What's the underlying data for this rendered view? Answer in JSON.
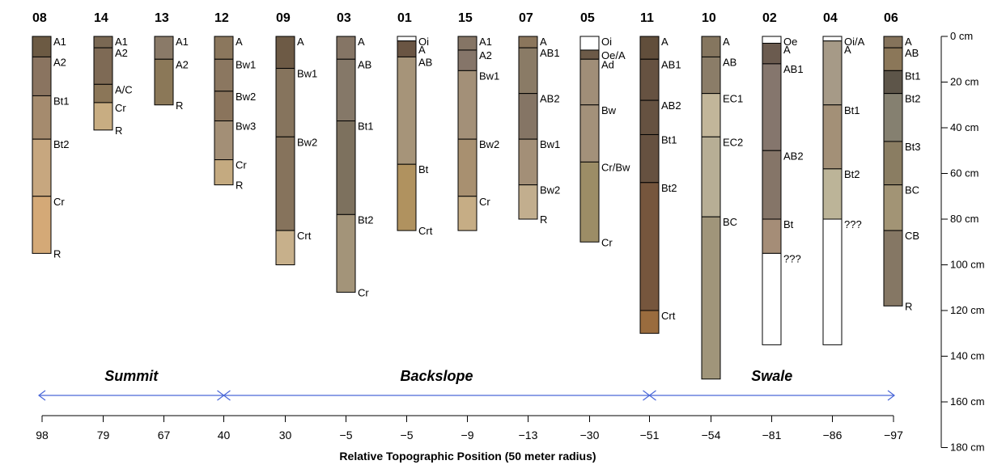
{
  "figure": {
    "x_axis_title": "Relative Topographic Position (50 meter radius)",
    "depth_unit": "cm",
    "depth_ticks": [
      0,
      20,
      40,
      60,
      80,
      100,
      120,
      140,
      160,
      180
    ],
    "regions": [
      {
        "name": "Summit",
        "from_index": 0,
        "to_index": 3
      },
      {
        "name": "Backslope",
        "from_index": 3,
        "to_index": 10
      },
      {
        "name": "Swale",
        "from_index": 10,
        "to_index": 14
      }
    ],
    "profiles": [
      {
        "id": "08",
        "position": "98",
        "horizons": [
          {
            "name": "A1",
            "top": 0,
            "bottom": 9,
            "color": "#6c5a43"
          },
          {
            "name": "A2",
            "top": 9,
            "bottom": 26,
            "color": "#8a7460"
          },
          {
            "name": "Bt1",
            "top": 26,
            "bottom": 45,
            "color": "#a58b6e"
          },
          {
            "name": "Bt2",
            "top": 45,
            "bottom": 70,
            "color": "#c7a77f"
          },
          {
            "name": "Cr",
            "top": 70,
            "bottom": 95,
            "color": "#d4a977"
          }
        ],
        "bottom_label": "R"
      },
      {
        "id": "14",
        "position": "79",
        "horizons": [
          {
            "name": "A1",
            "top": 0,
            "bottom": 5,
            "color": "#7a6853"
          },
          {
            "name": "A2",
            "top": 5,
            "bottom": 21,
            "color": "#7e6a55"
          },
          {
            "name": "A/C",
            "top": 21,
            "bottom": 29,
            "color": "#8b7658"
          },
          {
            "name": "Cr",
            "top": 29,
            "bottom": 41,
            "color": "#c8ad82"
          }
        ],
        "bottom_label": "R"
      },
      {
        "id": "13",
        "position": "67",
        "horizons": [
          {
            "name": "A1",
            "top": 0,
            "bottom": 10,
            "color": "#8a7a68"
          },
          {
            "name": "A2",
            "top": 10,
            "bottom": 30,
            "color": "#8b7858"
          }
        ],
        "bottom_label": "R"
      },
      {
        "id": "12",
        "position": "40",
        "horizons": [
          {
            "name": "A",
            "top": 0,
            "bottom": 10,
            "color": "#8b775d"
          },
          {
            "name": "Bw1",
            "top": 10,
            "bottom": 24,
            "color": "#8b7760"
          },
          {
            "name": "Bw2",
            "top": 24,
            "bottom": 37,
            "color": "#8a745c"
          },
          {
            "name": "Bw3",
            "top": 37,
            "bottom": 54,
            "color": "#a38f76"
          },
          {
            "name": "Cr",
            "top": 54,
            "bottom": 65,
            "color": "#c4aa80"
          }
        ],
        "bottom_label": "R"
      },
      {
        "id": "09",
        "position": "30",
        "horizons": [
          {
            "name": "A",
            "top": 0,
            "bottom": 14,
            "color": "#6d5a45"
          },
          {
            "name": "Bw1",
            "top": 14,
            "bottom": 44,
            "color": "#86745d"
          },
          {
            "name": "Bw2",
            "top": 44,
            "bottom": 85,
            "color": "#86735c"
          },
          {
            "name": "Crt",
            "top": 85,
            "bottom": 100,
            "color": "#c7b08b"
          }
        ],
        "bottom_label": ""
      },
      {
        "id": "03",
        "position": "−5",
        "horizons": [
          {
            "name": "A",
            "top": 0,
            "bottom": 10,
            "color": "#857565"
          },
          {
            "name": "AB",
            "top": 10,
            "bottom": 37,
            "color": "#857868"
          },
          {
            "name": "Bt1",
            "top": 37,
            "bottom": 78,
            "color": "#7d715e"
          },
          {
            "name": "Bt2",
            "top": 78,
            "bottom": 112,
            "color": "#a39479"
          }
        ],
        "bottom_label": "Cr"
      },
      {
        "id": "01",
        "position": "−5",
        "horizons": [
          {
            "name": "Oi",
            "top": 0,
            "bottom": 2,
            "color": "#ffffff"
          },
          {
            "name": "A",
            "top": 2,
            "bottom": 9,
            "color": "#6a5543"
          },
          {
            "name": "AB",
            "top": 9,
            "bottom": 56,
            "color": "#a69479"
          },
          {
            "name": "Bt",
            "top": 56,
            "bottom": 85,
            "color": "#b0925f"
          }
        ],
        "bottom_label": "Crt"
      },
      {
        "id": "15",
        "position": "−9",
        "horizons": [
          {
            "name": "A1",
            "top": 0,
            "bottom": 6,
            "color": "#857565"
          },
          {
            "name": "A2",
            "top": 6,
            "bottom": 15,
            "color": "#857569"
          },
          {
            "name": "Bw1",
            "top": 15,
            "bottom": 45,
            "color": "#a39078"
          },
          {
            "name": "Bw2",
            "top": 45,
            "bottom": 70,
            "color": "#a89070"
          },
          {
            "name": "Cr",
            "top": 70,
            "bottom": 85,
            "color": "#c6ad85"
          }
        ],
        "bottom_label": ""
      },
      {
        "id": "07",
        "position": "−13",
        "horizons": [
          {
            "name": "A",
            "top": 0,
            "bottom": 5,
            "color": "#8b765c"
          },
          {
            "name": "AB1",
            "top": 5,
            "bottom": 25,
            "color": "#8a7b66"
          },
          {
            "name": "AB2",
            "top": 25,
            "bottom": 45,
            "color": "#857565"
          },
          {
            "name": "Bw1",
            "top": 45,
            "bottom": 65,
            "color": "#a38f77"
          },
          {
            "name": "Bw2",
            "top": 65,
            "bottom": 80,
            "color": "#c2ae8e"
          }
        ],
        "bottom_label": "R"
      },
      {
        "id": "05",
        "position": "−30",
        "horizons": [
          {
            "name": "Oi",
            "top": 0,
            "bottom": 6,
            "color": "#ffffff"
          },
          {
            "name": "Oe/A",
            "top": 6,
            "bottom": 10,
            "color": "#6c5a48"
          },
          {
            "name": "Ad",
            "top": 10,
            "bottom": 30,
            "color": "#a08e78"
          },
          {
            "name": "Bw",
            "top": 30,
            "bottom": 55,
            "color": "#a3917a"
          },
          {
            "name": "Cr/Bw",
            "top": 55,
            "bottom": 90,
            "color": "#9c8d66"
          }
        ],
        "bottom_label": "Cr"
      },
      {
        "id": "11",
        "position": "−51",
        "horizons": [
          {
            "name": "A",
            "top": 0,
            "bottom": 10,
            "color": "#614e3b"
          },
          {
            "name": "AB1",
            "top": 10,
            "bottom": 28,
            "color": "#665241"
          },
          {
            "name": "AB2",
            "top": 28,
            "bottom": 43,
            "color": "#665241"
          },
          {
            "name": "Bt1",
            "top": 43,
            "bottom": 64,
            "color": "#665140"
          },
          {
            "name": "Bt2",
            "top": 64,
            "bottom": 120,
            "color": "#76563d"
          },
          {
            "name": "Crt",
            "top": 120,
            "bottom": 130,
            "color": "#9a6c3e"
          }
        ],
        "bottom_label": ""
      },
      {
        "id": "10",
        "position": "−54",
        "horizons": [
          {
            "name": "A",
            "top": 0,
            "bottom": 9,
            "color": "#85765f"
          },
          {
            "name": "AB",
            "top": 9,
            "bottom": 25,
            "color": "#8b7d68"
          },
          {
            "name": "EC1",
            "top": 25,
            "bottom": 44,
            "color": "#c2b69a"
          },
          {
            "name": "EC2",
            "top": 44,
            "bottom": 79,
            "color": "#b7ae95"
          },
          {
            "name": "BC",
            "top": 79,
            "bottom": 150,
            "color": "#a0957a"
          }
        ],
        "bottom_label": ""
      },
      {
        "id": "02",
        "position": "−81",
        "horizons": [
          {
            "name": "Oe",
            "top": 0,
            "bottom": 3,
            "color": "#ffffff"
          },
          {
            "name": "A",
            "top": 3,
            "bottom": 12,
            "color": "#6b5b4f"
          },
          {
            "name": "AB1",
            "top": 12,
            "bottom": 50,
            "color": "#85766d"
          },
          {
            "name": "AB2",
            "top": 50,
            "bottom": 80,
            "color": "#857568"
          },
          {
            "name": "Bt",
            "top": 80,
            "bottom": 95,
            "color": "#a58d77"
          },
          {
            "name": "???",
            "top": 95,
            "bottom": 135,
            "color": "#ffffff"
          }
        ],
        "bottom_label": ""
      },
      {
        "id": "04",
        "position": "−86",
        "horizons": [
          {
            "name": "Oi/A",
            "top": 0,
            "bottom": 2,
            "color": "#ffffff"
          },
          {
            "name": "A",
            "top": 2,
            "bottom": 30,
            "color": "#a69a87"
          },
          {
            "name": "Bt1",
            "top": 30,
            "bottom": 58,
            "color": "#a39077"
          },
          {
            "name": "Bt2",
            "top": 58,
            "bottom": 80,
            "color": "#bcb498"
          },
          {
            "name": "???",
            "top": 80,
            "bottom": 135,
            "color": "#ffffff"
          }
        ],
        "bottom_label": ""
      },
      {
        "id": "06",
        "position": "−97",
        "horizons": [
          {
            "name": "A",
            "top": 0,
            "bottom": 5,
            "color": "#85735b"
          },
          {
            "name": "AB",
            "top": 5,
            "bottom": 15,
            "color": "#8b7759"
          },
          {
            "name": "Bt1",
            "top": 15,
            "bottom": 25,
            "color": "#5d5549"
          },
          {
            "name": "Bt2",
            "top": 25,
            "bottom": 46,
            "color": "#858070"
          },
          {
            "name": "Bt3",
            "top": 46,
            "bottom": 65,
            "color": "#8a7d62"
          },
          {
            "name": "BC",
            "top": 65,
            "bottom": 85,
            "color": "#a29475"
          },
          {
            "name": "CB",
            "top": 85,
            "bottom": 118,
            "color": "#857764"
          }
        ],
        "bottom_label": "R"
      }
    ]
  }
}
